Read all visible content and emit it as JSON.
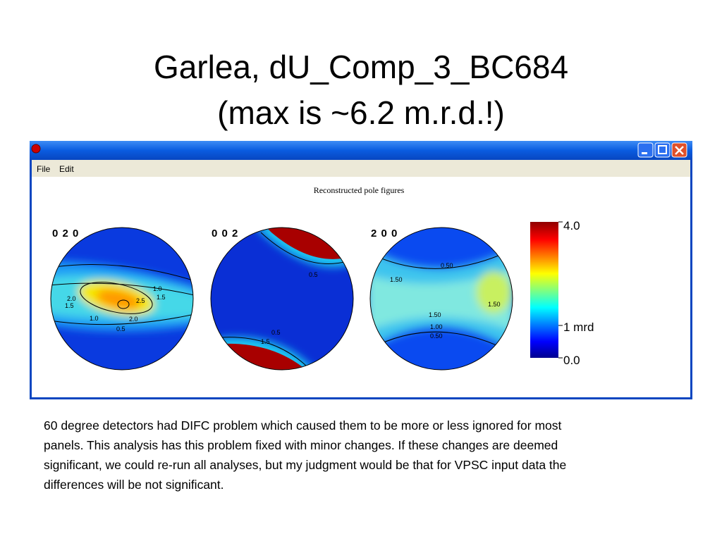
{
  "slide": {
    "title_lines": [
      "Garlea, dU_Comp_3_BC684",
      "(max is ~6.2 m.r.d.!)"
    ],
    "body_lines": [
      "60 degree detectors had DIFC problem which caused them to be more or less ignored for most",
      "panels. This analysis has this problem fixed with minor changes. If these changes are deemed",
      "significant, we could re-run all analyses, but my judgment would be that for VPSC input data the",
      "differences will be not significant."
    ]
  },
  "window": {
    "menu": [
      "File",
      "Edit"
    ],
    "plot_title": "Reconstructed pole figures",
    "pole_figures": [
      {
        "label": "0 2 0",
        "contours": [
          "2.0",
          "1.5",
          "1.0",
          "2.5",
          "1.0",
          "1.5",
          "2.0",
          "0.5"
        ]
      },
      {
        "label": "0 0 2",
        "contours": [
          "0.5",
          "0.5",
          "1.5"
        ]
      },
      {
        "label": "2 0 0",
        "contours": [
          "1.50",
          "0.50",
          "1.50",
          "1.50",
          "1.00",
          "0.50"
        ]
      }
    ],
    "colorbar_labels": [
      "4.0",
      "1 mrd",
      "0.0"
    ]
  }
}
